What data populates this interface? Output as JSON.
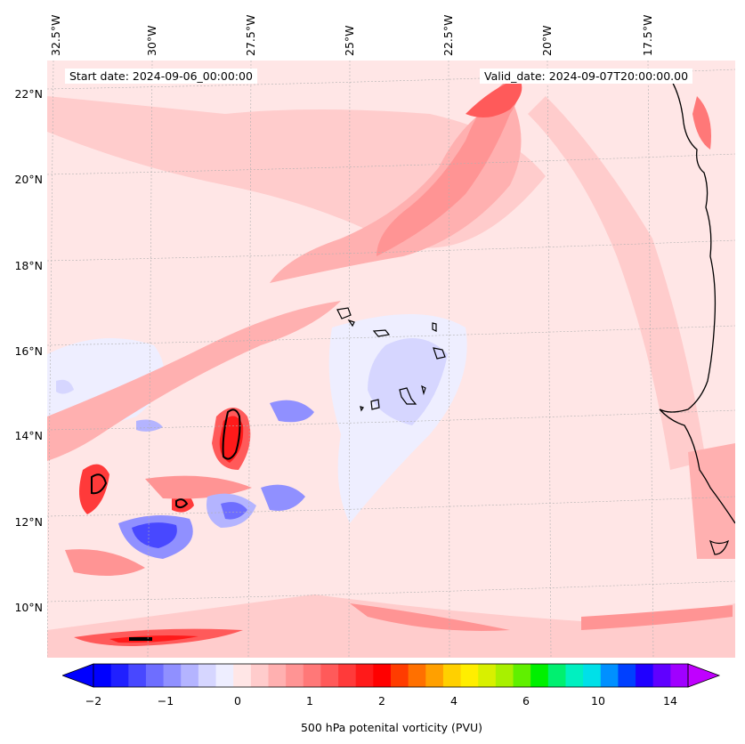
{
  "map": {
    "header": {
      "start_date": "Start date: 2024-09-06_00:00:00",
      "valid_date": "Valid_date: 2024-09-07T20:00:00.00"
    },
    "longitude_labels": [
      "32.5°W",
      "30°W",
      "27.5°W",
      "25°W",
      "22.5°W",
      "20°W",
      "17.5°W"
    ],
    "latitude_labels": [
      "22°N",
      "20°N",
      "18°N",
      "16°N",
      "14°N",
      "12°N",
      "10°N"
    ],
    "colorbar": {
      "label": "500 hPa potenital vorticity (PVU)",
      "tick_labels": [
        "−2",
        "−1",
        "0",
        "1",
        "2",
        "4",
        "6",
        "10",
        "14"
      ],
      "colors": [
        "#0000ff",
        "#2020ff",
        "#4848ff",
        "#6e6eff",
        "#9090ff",
        "#b4b4ff",
        "#d6d6ff",
        "#eeeeff",
        "#ffe6e6",
        "#ffcccc",
        "#ffb0b0",
        "#ff9494",
        "#ff7878",
        "#ff5a5a",
        "#ff3a3a",
        "#ff1a1a",
        "#ff0000",
        "#ff3c00",
        "#ff7000",
        "#ffa000",
        "#ffd000",
        "#ffee00",
        "#d8f000",
        "#a8f000",
        "#60f000",
        "#00f000",
        "#00f070",
        "#00f0c0",
        "#00e0e8",
        "#0090ff",
        "#0040ff",
        "#2000ff",
        "#6000ff",
        "#a000ff"
      ],
      "under_color": "#0000ff",
      "over_color": "#c000ff"
    }
  }
}
